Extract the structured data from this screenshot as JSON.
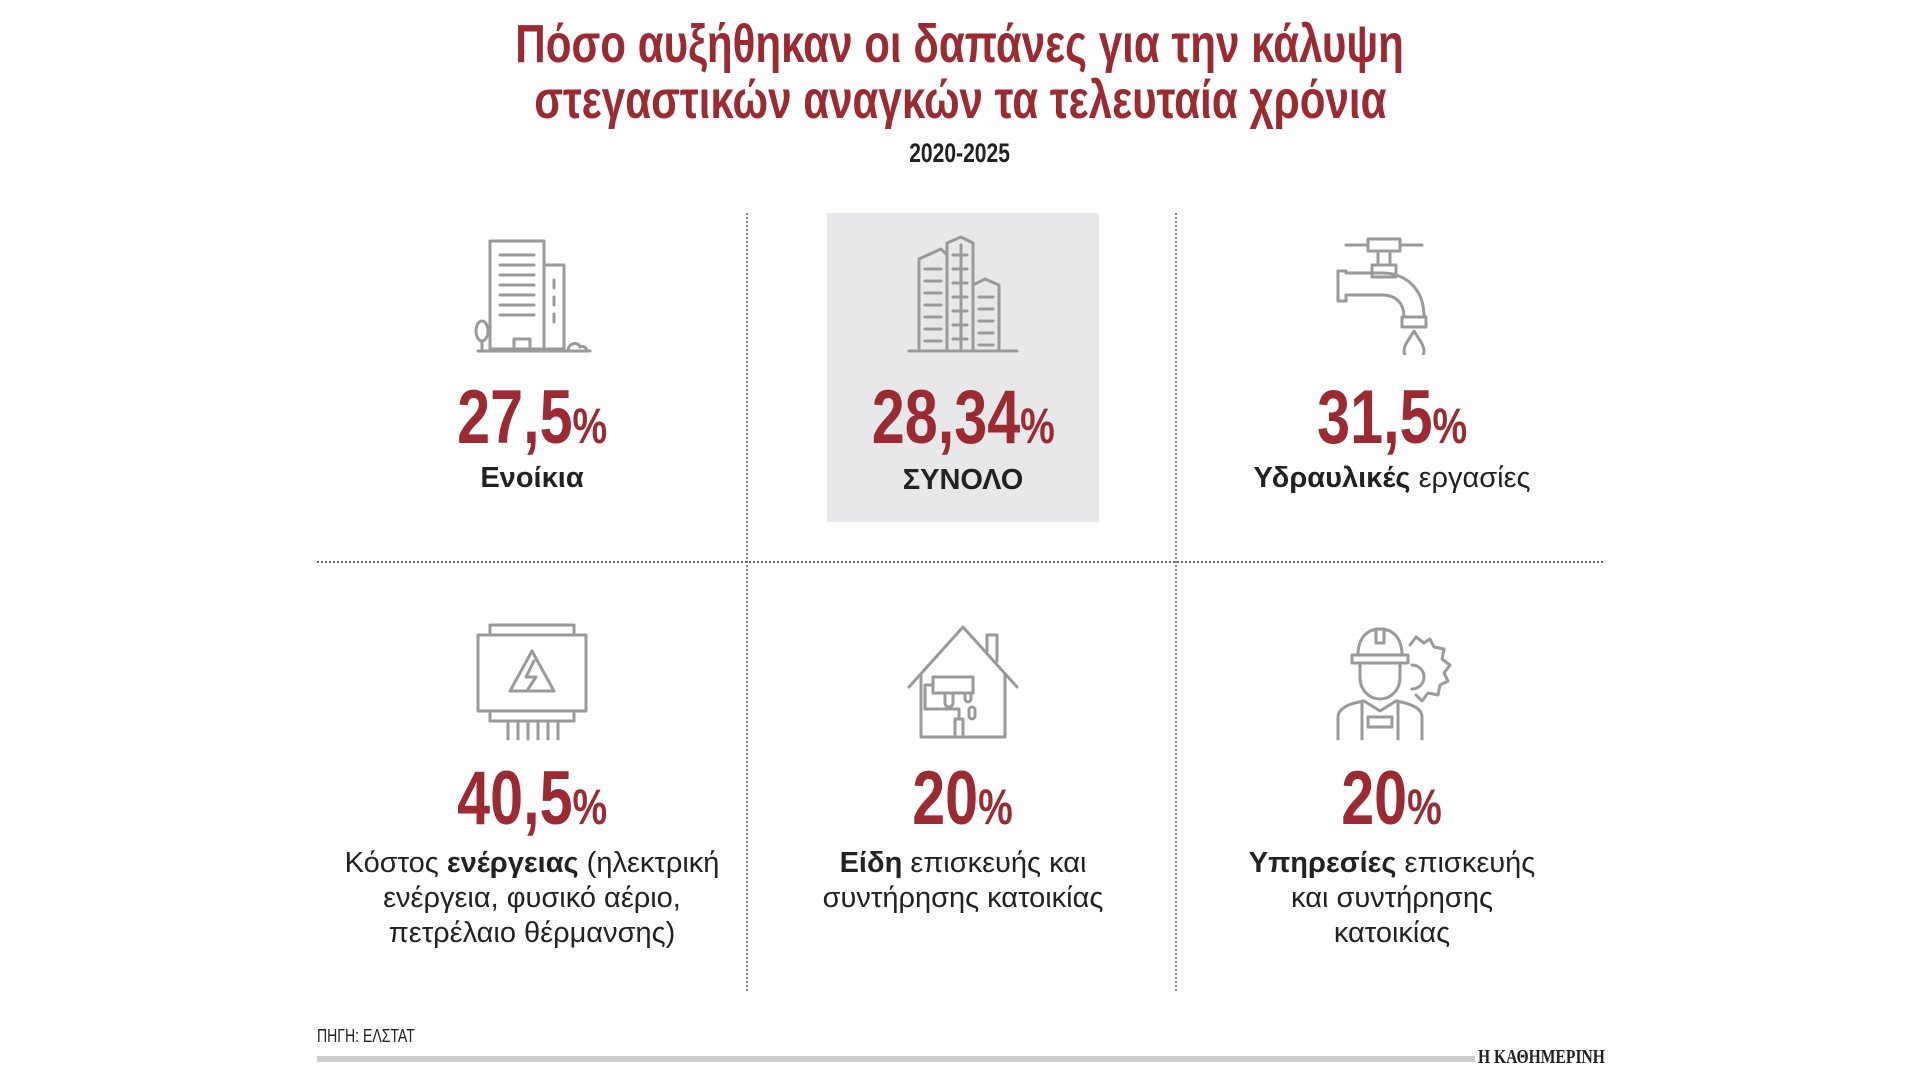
{
  "title": {
    "line1": "Πόσο αυξήθηκαν οι δαπάνες για την κάλυψη",
    "line2": "στεγαστικών αναγκών τα τελευταία χρόνια"
  },
  "subtitle": "2020-2025",
  "accent_color": "#9b2a32",
  "percent_symbol": "%",
  "cards": [
    {
      "icon": "apartment-building-icon",
      "value": "27,5",
      "label_bold": "Ενοίκια",
      "label_rest": ""
    },
    {
      "icon": "city-buildings-icon",
      "value": "28,34",
      "label_bold": "ΣΥΝΟΛΟ",
      "label_rest": "",
      "highlighted": true
    },
    {
      "icon": "water-tap-icon",
      "value": "31,5",
      "label_bold": "Υδραυλικές",
      "label_rest": " εργασίες"
    },
    {
      "icon": "electric-meter-icon",
      "value": "40,5",
      "label_pre": "Κόστος ",
      "label_bold": "ενέργειας",
      "label_rest": " (ηλεκτρική ενέργεια, φυσικό αέριο, πετρέλαιο θέρμανσης)"
    },
    {
      "icon": "house-paint-roller-icon",
      "value": "20",
      "label_bold": "Είδη",
      "label_rest": " επισκευής και συντήρησης κατοικίας"
    },
    {
      "icon": "worker-gear-icon",
      "value": "20",
      "label_bold": "Υπηρεσίες",
      "label_rest": " επισκευής και συντήρησης κατοικίας"
    }
  ],
  "footer": {
    "source": "ΠΗΓΗ: ΕΛΣΤΑΤ",
    "brand": "Η ΚΑΘΗΜΕΡΙΝΗ"
  }
}
